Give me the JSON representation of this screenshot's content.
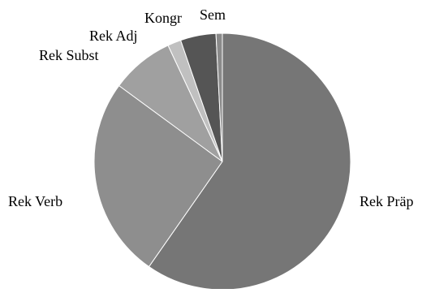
{
  "chart_data": {
    "type": "pie",
    "categories": [
      "Rek Präp",
      "Rek Verb",
      "Rek Subst",
      "Rek Adj",
      "Kongr",
      "Sem"
    ],
    "values": [
      60.0,
      25.5,
      8.0,
      1.7,
      4.5,
      0.8
    ],
    "colors": [
      "#767676",
      "#8e8e8e",
      "#a0a0a0",
      "#c0c0c0",
      "#555555",
      "#8a8a8a"
    ],
    "slice_stroke": "#ffffff",
    "start_angle_deg": 0,
    "direction": "clockwise",
    "legend": "none"
  }
}
